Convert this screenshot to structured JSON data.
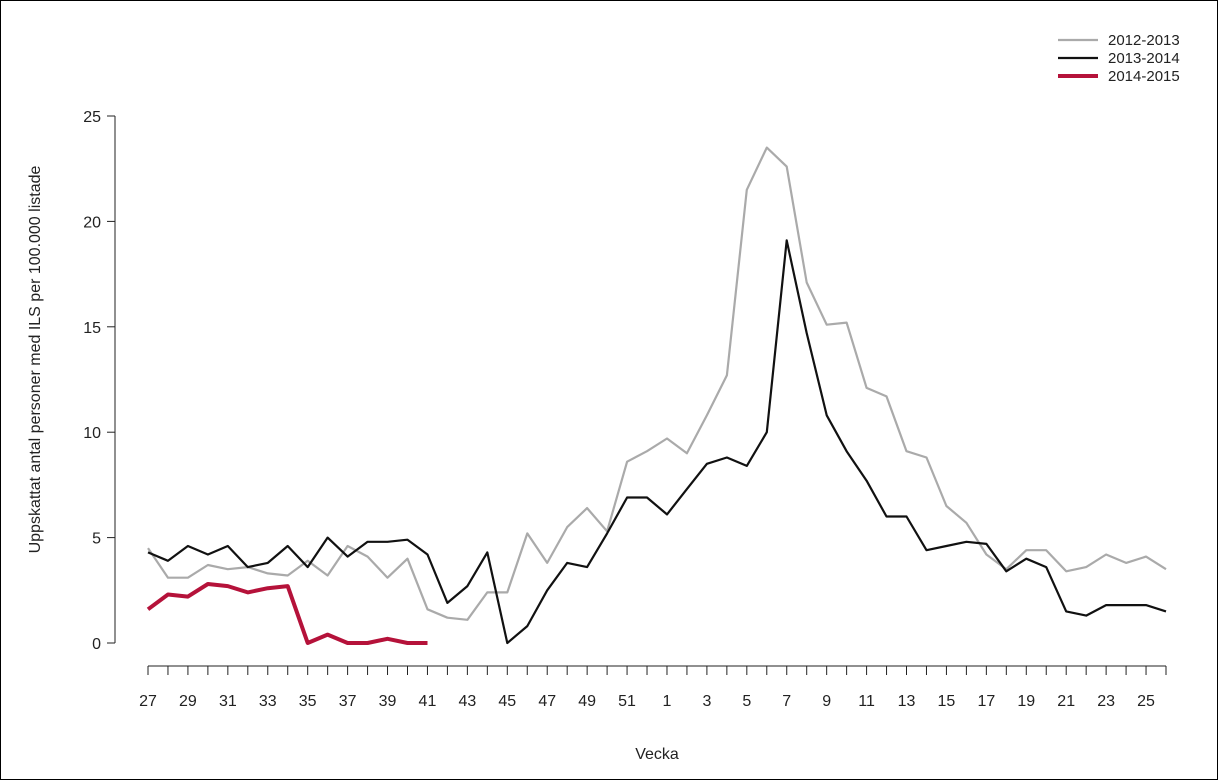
{
  "chart_data": {
    "type": "line",
    "title": "",
    "xlabel": "Vecka",
    "ylabel": "Uppskattat antal personer med ILS per 100.000 listade",
    "ylim": [
      0,
      25
    ],
    "yticks": [
      0,
      5,
      10,
      15,
      20,
      25
    ],
    "x_week_order": [
      27,
      28,
      29,
      30,
      31,
      32,
      33,
      34,
      35,
      36,
      37,
      38,
      39,
      40,
      41,
      42,
      43,
      44,
      45,
      46,
      47,
      48,
      49,
      50,
      51,
      52,
      1,
      2,
      3,
      4,
      5,
      6,
      7,
      8,
      9,
      10,
      11,
      12,
      13,
      14,
      15,
      16,
      17,
      18,
      19,
      20,
      21,
      22,
      23,
      24,
      25,
      26
    ],
    "x_tick_labels": [
      "27",
      "29",
      "31",
      "33",
      "35",
      "37",
      "39",
      "41",
      "43",
      "45",
      "47",
      "49",
      "51",
      "1",
      "3",
      "5",
      "7",
      "9",
      "11",
      "13",
      "15",
      "17",
      "19",
      "21",
      "23",
      "25"
    ],
    "grid": false,
    "legend_position": "top-right",
    "series": [
      {
        "name": "2012-2013",
        "color": "#aaaaaa",
        "values": [
          4.5,
          3.1,
          3.1,
          3.7,
          3.5,
          3.6,
          3.3,
          3.2,
          3.9,
          3.2,
          4.6,
          4.1,
          3.1,
          4.0,
          1.6,
          1.2,
          1.1,
          2.4,
          2.4,
          5.2,
          3.8,
          5.5,
          6.4,
          5.3,
          8.6,
          9.1,
          9.7,
          9.0,
          10.8,
          12.7,
          21.5,
          23.5,
          22.6,
          17.1,
          15.1,
          15.2,
          12.1,
          11.7,
          9.1,
          8.8,
          6.5,
          5.7,
          4.2,
          3.5,
          4.4,
          4.4,
          3.4,
          3.6,
          4.2,
          3.8,
          4.1,
          3.5
        ]
      },
      {
        "name": "2013-2014",
        "color": "#111111",
        "values": [
          4.3,
          3.9,
          4.6,
          4.2,
          4.6,
          3.6,
          3.8,
          4.6,
          3.6,
          5.0,
          4.1,
          4.8,
          4.8,
          4.9,
          4.2,
          1.9,
          2.7,
          4.3,
          0.0,
          0.8,
          2.5,
          3.8,
          3.6,
          5.2,
          6.9,
          6.9,
          6.1,
          7.3,
          8.5,
          8.8,
          8.4,
          10.0,
          19.1,
          14.7,
          10.8,
          9.1,
          7.7,
          6.0,
          6.0,
          4.4,
          4.6,
          4.8,
          4.7,
          3.4,
          4.0,
          3.6,
          1.5,
          1.3,
          1.8,
          1.8,
          1.8,
          1.5
        ]
      },
      {
        "name": "2014-2015",
        "color": "#b5123a",
        "values": [
          1.6,
          2.3,
          2.2,
          2.8,
          2.7,
          2.4,
          2.6,
          2.7,
          0.0,
          0.4,
          0.0,
          0.0,
          0.2,
          0.0,
          0.0
        ]
      }
    ]
  }
}
